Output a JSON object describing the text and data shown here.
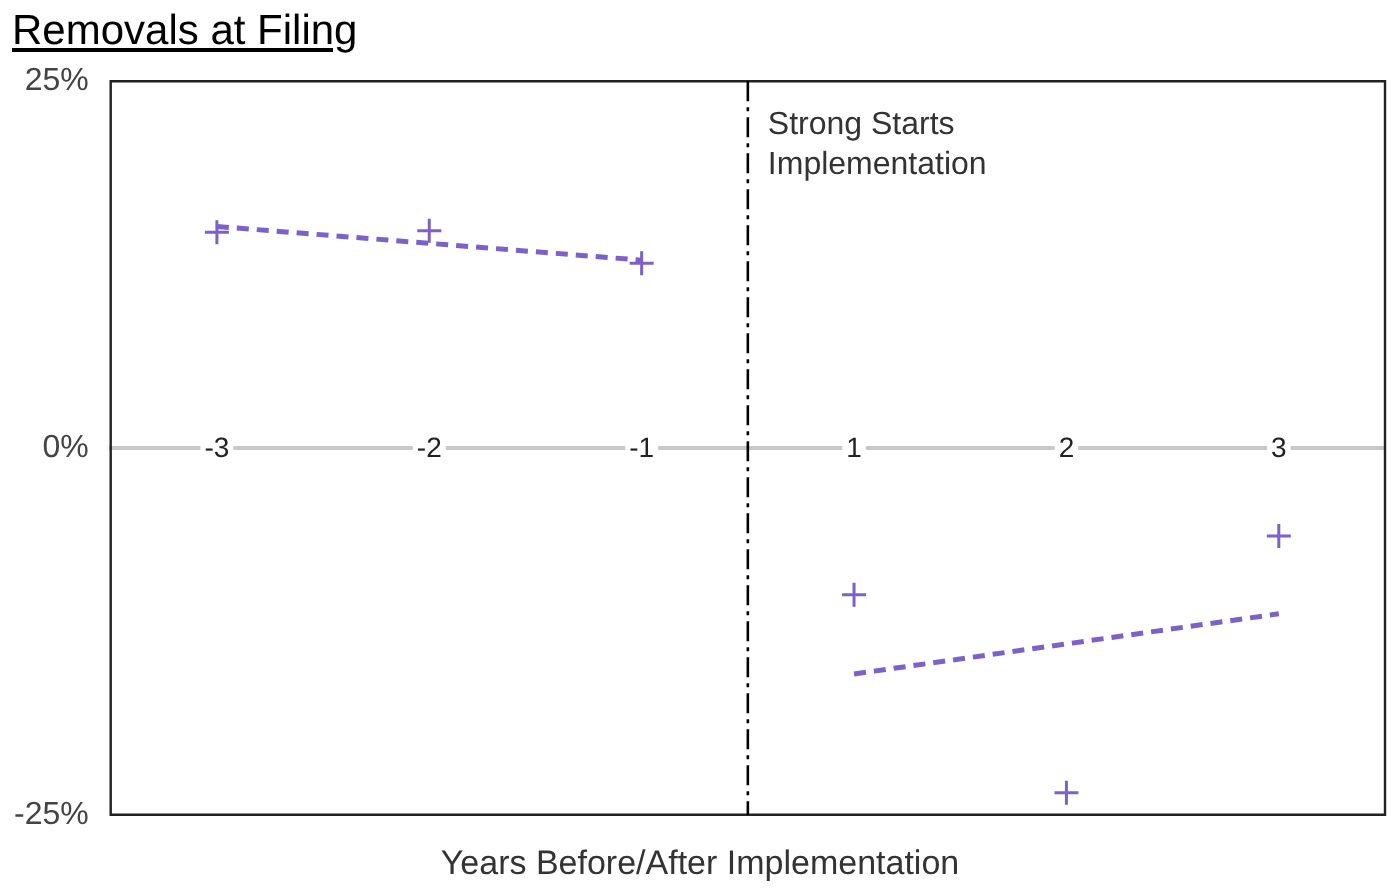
{
  "chart_data": {
    "type": "scatter",
    "title": "Removals at Filing",
    "xlabel": "Years Before/After Implementation",
    "categories": [
      "-3",
      "-2",
      "-1",
      "1",
      "2",
      "3"
    ],
    "series": [
      {
        "color": "#7b61c8",
        "values": [
          14.7,
          14.8,
          12.6,
          -10.0,
          -23.5,
          -6.0
        ],
        "marker": "cross"
      },
      {
        "type": "line",
        "color": "#7b61c8",
        "line_style": "dashed",
        "marker": "none",
        "values": [
          15.1,
          null,
          12.8,
          null,
          null,
          null
        ]
      },
      {
        "type": "line",
        "color": "#7b61c8",
        "line_style": "dashed",
        "marker": "none",
        "values": [
          null,
          null,
          null,
          -15.4,
          null,
          -11.3
        ]
      }
    ],
    "ylim": [
      -25,
      25
    ],
    "yticks": [
      {
        "value": -25,
        "label": "-25%"
      },
      {
        "value": 0,
        "label": "0%"
      },
      {
        "value": 25,
        "label": "25%"
      }
    ],
    "ref_lines": [
      {
        "axis": "x",
        "label": "Strong Starts Implementation",
        "line_style": "dashdot",
        "color": "#000000"
      }
    ],
    "grid": false,
    "legend": false
  }
}
